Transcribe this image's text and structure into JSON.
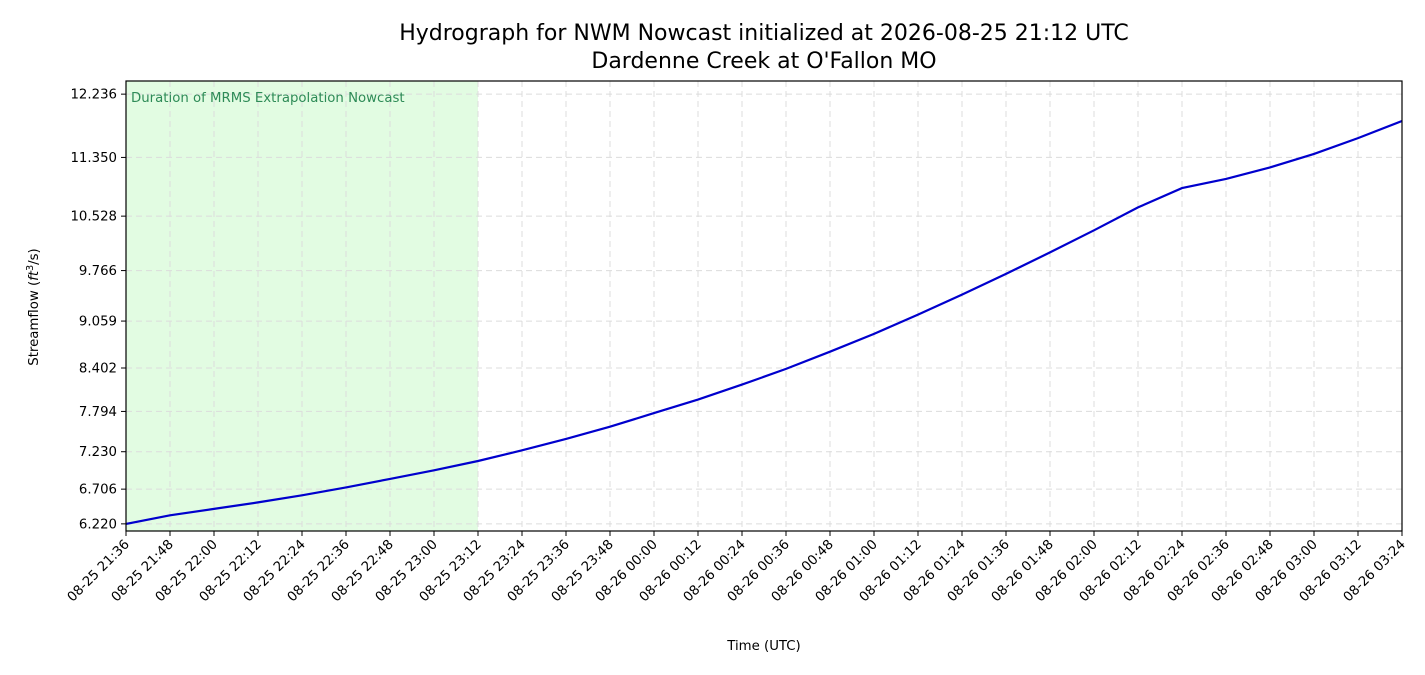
{
  "chart_data": {
    "type": "line",
    "title": "Hydrograph for NWM Nowcast initialized at 2026-08-25 21:12 UTC",
    "subtitle": "Dardenne Creek at O'Fallon MO",
    "xlabel": "Time (UTC)",
    "ylabel_main": "Streamflow (",
    "ylabel_unit_base": "ft",
    "ylabel_unit_exp": "3",
    "ylabel_unit_rest": "/s)",
    "ylabel_close": ")",
    "x": [
      "08-25 21:36",
      "08-25 21:48",
      "08-25 22:00",
      "08-25 22:12",
      "08-25 22:24",
      "08-25 22:36",
      "08-25 22:48",
      "08-25 23:00",
      "08-25 23:12",
      "08-25 23:24",
      "08-25 23:36",
      "08-25 23:48",
      "08-26 00:00",
      "08-26 00:12",
      "08-26 00:24",
      "08-26 00:36",
      "08-26 00:48",
      "08-26 01:00",
      "08-26 01:12",
      "08-26 01:24",
      "08-26 01:36",
      "08-26 01:48",
      "08-26 02:00",
      "08-26 02:12",
      "08-26 02:24",
      "08-26 02:36",
      "08-26 02:48",
      "08-26 03:00",
      "08-26 03:12",
      "08-26 03:24"
    ],
    "series": [
      {
        "color": "#0000cd",
        "values": [
          6.22,
          6.34,
          6.43,
          6.52,
          6.62,
          6.73,
          6.85,
          6.97,
          7.1,
          7.25,
          7.41,
          7.58,
          7.77,
          7.96,
          8.17,
          8.39,
          8.63,
          8.88,
          9.15,
          9.43,
          9.72,
          10.02,
          10.33,
          10.65,
          10.92,
          11.05,
          11.21,
          11.4,
          11.62,
          11.86
        ]
      }
    ],
    "yticks": [
      "6.220",
      "6.706",
      "7.230",
      "7.794",
      "8.402",
      "9.059",
      "9.766",
      "10.528",
      "11.350",
      "12.236"
    ],
    "ylim": [
      6.12,
      12.42
    ],
    "ytick_values": [
      6.22,
      6.706,
      7.23,
      7.794,
      8.402,
      9.059,
      9.766,
      10.528,
      11.35,
      12.236
    ],
    "shaded_region": {
      "from": "08-25 21:36",
      "to": "08-25 23:12",
      "label": "Duration of MRMS Extrapolation Nowcast",
      "fill_color": "#e2fce2",
      "text_color": "#2e8b57"
    },
    "grid": true,
    "legend": "none"
  }
}
